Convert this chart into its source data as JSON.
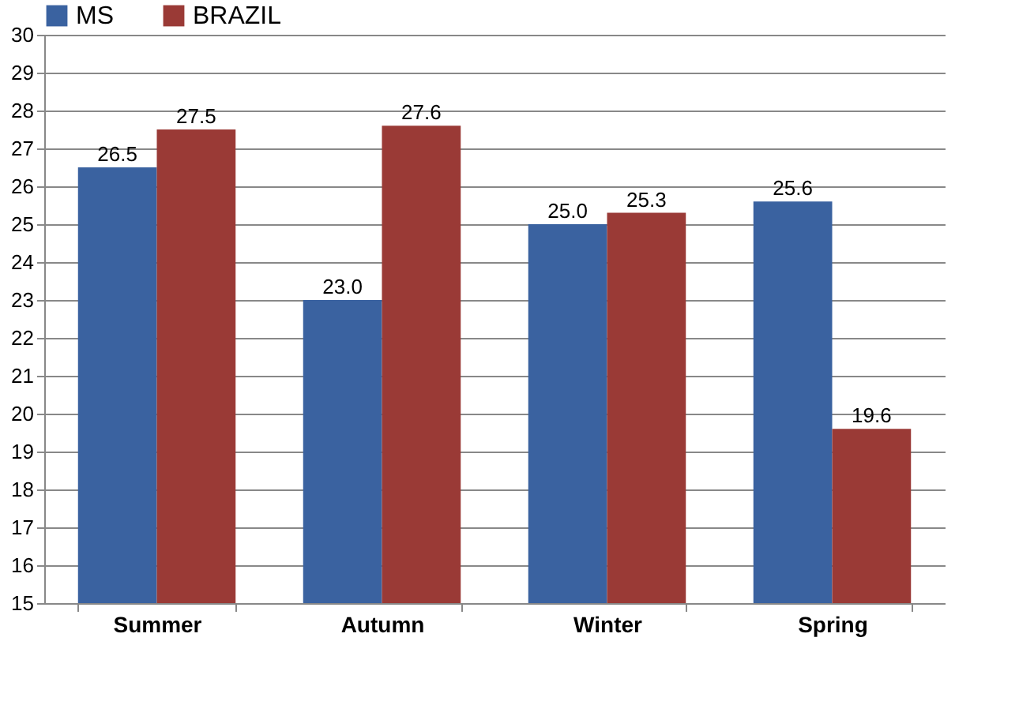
{
  "chart_data": {
    "type": "bar",
    "categories": [
      "Summer",
      "Autumn",
      "Winter",
      "Spring"
    ],
    "series": [
      {
        "name": "MS",
        "color": "#3a62a0",
        "values": [
          26.5,
          23.0,
          25.0,
          25.6
        ],
        "value_labels": [
          "26.5",
          "23.0",
          "25.0",
          "25.6"
        ]
      },
      {
        "name": "BRAZIL",
        "color": "#9a3a36",
        "values": [
          27.5,
          27.6,
          25.3,
          19.6
        ],
        "value_labels": [
          "27.5",
          "27.6",
          "25.3",
          "19.6"
        ]
      }
    ],
    "ylim": [
      15,
      30
    ],
    "yticks": [
      15,
      16,
      17,
      18,
      19,
      20,
      21,
      22,
      23,
      24,
      25,
      26,
      27,
      28,
      29,
      30
    ],
    "grid": "y",
    "legend": "top"
  }
}
